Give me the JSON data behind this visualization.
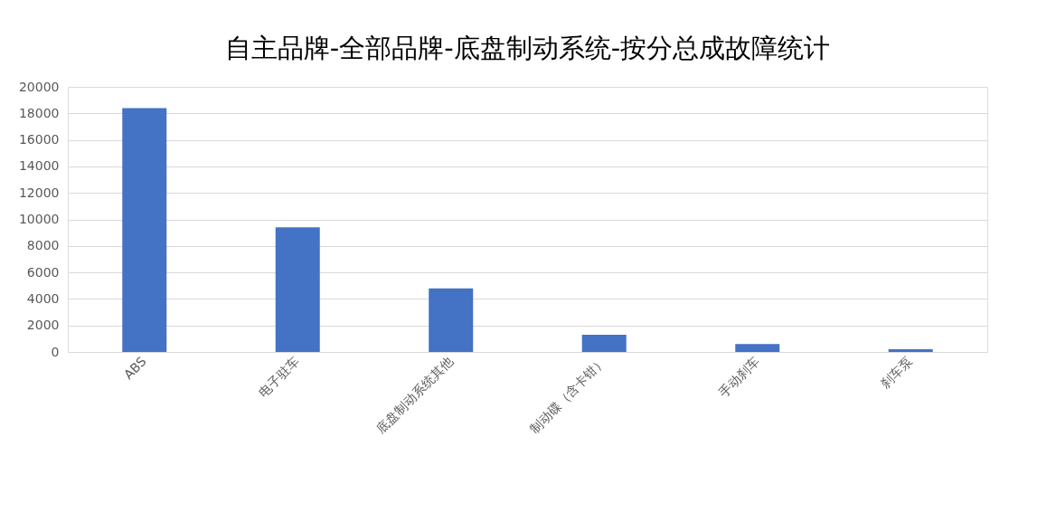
{
  "chart_data": {
    "type": "bar",
    "title": "自主品牌-全部品牌-底盘制动系统-按分总成故障统计",
    "categories": [
      "ABS",
      "电子驻车",
      "底盘制动系统其他",
      "制动碟（含卡钳）",
      "手动刹车",
      "刹车泵"
    ],
    "values": [
      18400,
      9400,
      4800,
      1300,
      600,
      200
    ],
    "color": "#4472c4",
    "ylim": [
      0,
      20000
    ],
    "yticks": [
      0,
      2000,
      4000,
      6000,
      8000,
      10000,
      12000,
      14000,
      16000,
      18000,
      20000
    ],
    "grid": "y"
  }
}
